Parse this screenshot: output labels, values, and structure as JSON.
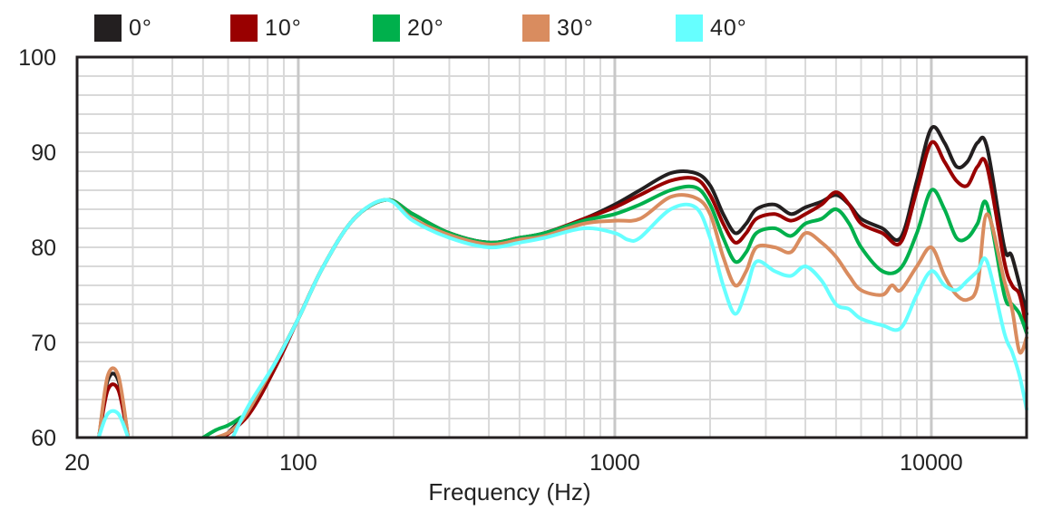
{
  "chart_data": {
    "type": "line",
    "xscale": "log",
    "xlabel": "Frequency (Hz)",
    "ylabel": "",
    "xlim": [
      20,
      20000
    ],
    "ylim": [
      60,
      100
    ],
    "x_ticks": [
      {
        "value": 20,
        "label": "20"
      },
      {
        "value": 100,
        "label": "100"
      },
      {
        "value": 1000,
        "label": "1000"
      },
      {
        "value": 10000,
        "label": "10000"
      }
    ],
    "y_ticks": [
      {
        "value": 60,
        "label": "60"
      },
      {
        "value": 70,
        "label": "70"
      },
      {
        "value": 80,
        "label": "80"
      },
      {
        "value": 90,
        "label": "90"
      },
      {
        "value": 100,
        "label": "100"
      }
    ],
    "legend_position": "top",
    "series": [
      {
        "name": "0°",
        "color": "#231f20",
        "segments": [
          [
            [
              23.5,
              60.2
            ],
            [
              25,
              66
            ],
            [
              27,
              66
            ],
            [
              29,
              60
            ]
          ],
          [
            [
              58,
              60
            ],
            [
              70,
              63
            ],
            [
              85,
              68
            ],
            [
              100,
              72.5
            ],
            [
              120,
              78
            ],
            [
              150,
              83
            ],
            [
              190,
              85
            ],
            [
              230,
              83.5
            ],
            [
              300,
              81.5
            ],
            [
              400,
              80.5
            ],
            [
              500,
              81
            ],
            [
              600,
              81.5
            ],
            [
              800,
              83
            ],
            [
              1000,
              84.5
            ],
            [
              1200,
              86
            ],
            [
              1500,
              87.8
            ],
            [
              1800,
              87.8
            ],
            [
              2000,
              86.5
            ],
            [
              2200,
              83.5
            ],
            [
              2400,
              81.5
            ],
            [
              2600,
              82.5
            ],
            [
              2800,
              84
            ],
            [
              3200,
              84.5
            ],
            [
              3600,
              83.5
            ],
            [
              4000,
              84.2
            ],
            [
              4500,
              84.8
            ],
            [
              5000,
              85.5
            ],
            [
              5500,
              84.5
            ],
            [
              6000,
              83
            ],
            [
              7000,
              82
            ],
            [
              8000,
              81
            ],
            [
              9000,
              87
            ],
            [
              10000,
              92.5
            ],
            [
              11000,
              91
            ],
            [
              12000,
              88.5
            ],
            [
              13000,
              89
            ],
            [
              14000,
              91
            ],
            [
              15000,
              90.5
            ],
            [
              17000,
              80
            ],
            [
              18000,
              79
            ],
            [
              20000,
              73
            ]
          ]
        ]
      },
      {
        "name": "10°",
        "color": "#990000",
        "segments": [
          [
            [
              23.5,
              60.2
            ],
            [
              25,
              65
            ],
            [
              27,
              65
            ],
            [
              29,
              60
            ]
          ],
          [
            [
              58,
              60
            ],
            [
              70,
              62.5
            ],
            [
              85,
              67.5
            ],
            [
              100,
              72.5
            ],
            [
              120,
              78
            ],
            [
              150,
              83
            ],
            [
              190,
              85
            ],
            [
              230,
              83.5
            ],
            [
              300,
              81.5
            ],
            [
              400,
              80.5
            ],
            [
              500,
              81
            ],
            [
              600,
              81.5
            ],
            [
              800,
              83
            ],
            [
              1000,
              84.2
            ],
            [
              1200,
              85.5
            ],
            [
              1500,
              87
            ],
            [
              1800,
              87.2
            ],
            [
              2000,
              85.5
            ],
            [
              2200,
              82.5
            ],
            [
              2400,
              80.5
            ],
            [
              2600,
              81.5
            ],
            [
              2800,
              83
            ],
            [
              3200,
              83.5
            ],
            [
              3600,
              82.8
            ],
            [
              4000,
              83.5
            ],
            [
              4500,
              84.5
            ],
            [
              5000,
              85.8
            ],
            [
              5500,
              84.5
            ],
            [
              6000,
              82.5
            ],
            [
              7000,
              81.5
            ],
            [
              8000,
              80.5
            ],
            [
              9000,
              86
            ],
            [
              10000,
              91
            ],
            [
              11000,
              89
            ],
            [
              12000,
              87
            ],
            [
              13000,
              86.5
            ],
            [
              14000,
              88.5
            ],
            [
              15000,
              88.5
            ],
            [
              17000,
              78.5
            ],
            [
              18000,
              76
            ],
            [
              19000,
              75
            ],
            [
              20000,
              71.5
            ]
          ]
        ]
      },
      {
        "name": "20°",
        "color": "#00b04c",
        "segments": [
          [
            [
              50,
              60
            ],
            [
              55,
              60.8
            ],
            [
              60,
              61.3
            ],
            [
              65,
              62
            ],
            [
              70,
              63
            ],
            [
              85,
              68
            ],
            [
              100,
              72.5
            ],
            [
              120,
              78
            ],
            [
              150,
              83
            ],
            [
              190,
              85
            ],
            [
              230,
              83.5
            ],
            [
              300,
              81.5
            ],
            [
              400,
              80.5
            ],
            [
              500,
              81
            ],
            [
              600,
              81.5
            ],
            [
              800,
              82.8
            ],
            [
              1000,
              83.5
            ],
            [
              1200,
              84.5
            ],
            [
              1500,
              86
            ],
            [
              1800,
              86.3
            ],
            [
              2000,
              84.5
            ],
            [
              2200,
              81
            ],
            [
              2400,
              78.5
            ],
            [
              2600,
              79.5
            ],
            [
              2800,
              81.5
            ],
            [
              3200,
              82
            ],
            [
              3600,
              81.2
            ],
            [
              4000,
              82.5
            ],
            [
              4500,
              83
            ],
            [
              5000,
              84
            ],
            [
              5500,
              82.5
            ],
            [
              6000,
              80
            ],
            [
              7000,
              77.5
            ],
            [
              8000,
              77.8
            ],
            [
              9000,
              81.5
            ],
            [
              10000,
              86
            ],
            [
              11000,
              84
            ],
            [
              12000,
              81
            ],
            [
              13000,
              81
            ],
            [
              14000,
              82.5
            ],
            [
              15000,
              84.5
            ],
            [
              17000,
              75
            ],
            [
              18000,
              74
            ],
            [
              19000,
              73
            ],
            [
              20000,
              71
            ]
          ]
        ]
      },
      {
        "name": "30°",
        "color": "#d98c5f",
        "segments": [
          [
            [
              23.5,
              60.2
            ],
            [
              25,
              66.5
            ],
            [
              27,
              66.5
            ],
            [
              29,
              60
            ]
          ],
          [
            [
              55,
              60
            ],
            [
              60,
              60.5
            ],
            [
              65,
              61.5
            ],
            [
              70,
              63
            ],
            [
              85,
              68
            ],
            [
              100,
              72.5
            ],
            [
              120,
              78
            ],
            [
              150,
              83
            ],
            [
              190,
              85
            ],
            [
              230,
              83
            ],
            [
              300,
              81.3
            ],
            [
              400,
              80.3
            ],
            [
              500,
              80.8
            ],
            [
              600,
              81.2
            ],
            [
              800,
              82.5
            ],
            [
              1000,
              82.8
            ],
            [
              1200,
              83
            ],
            [
              1500,
              85.3
            ],
            [
              1800,
              85.2
            ],
            [
              2000,
              83.5
            ],
            [
              2200,
              79
            ],
            [
              2400,
              76
            ],
            [
              2600,
              77.5
            ],
            [
              2800,
              80
            ],
            [
              3200,
              80
            ],
            [
              3600,
              79.5
            ],
            [
              4000,
              81.5
            ],
            [
              4500,
              80.5
            ],
            [
              5000,
              79
            ],
            [
              5500,
              77
            ],
            [
              6000,
              75.5
            ],
            [
              7000,
              75
            ],
            [
              7500,
              76
            ],
            [
              8000,
              75.5
            ],
            [
              9000,
              78
            ],
            [
              10000,
              80
            ],
            [
              11000,
              77
            ],
            [
              12000,
              75
            ],
            [
              13000,
              74.5
            ],
            [
              14000,
              76
            ],
            [
              15000,
              83.5
            ],
            [
              17000,
              76.5
            ],
            [
              18000,
              73.5
            ],
            [
              19000,
              69
            ],
            [
              20000,
              70.5
            ]
          ]
        ]
      },
      {
        "name": "40°",
        "color": "#66ffff",
        "segments": [
          [
            [
              23.5,
              60.2
            ],
            [
              25,
              62.5
            ],
            [
              27,
              62.5
            ],
            [
              29,
              60
            ]
          ],
          [
            [
              62,
              60
            ],
            [
              70,
              63.5
            ],
            [
              85,
              68
            ],
            [
              100,
              72.5
            ],
            [
              120,
              78
            ],
            [
              150,
              83
            ],
            [
              190,
              85
            ],
            [
              230,
              82.8
            ],
            [
              300,
              81
            ],
            [
              400,
              80
            ],
            [
              500,
              80.5
            ],
            [
              600,
              81
            ],
            [
              800,
              82
            ],
            [
              1000,
              81.5
            ],
            [
              1100,
              80.8
            ],
            [
              1200,
              81
            ],
            [
              1500,
              84
            ],
            [
              1800,
              84.2
            ],
            [
              2000,
              81
            ],
            [
              2200,
              76
            ],
            [
              2400,
              73
            ],
            [
              2600,
              75.5
            ],
            [
              2800,
              78.5
            ],
            [
              3200,
              77.5
            ],
            [
              3600,
              77
            ],
            [
              4000,
              78
            ],
            [
              4500,
              76.5
            ],
            [
              5000,
              74
            ],
            [
              5500,
              73.5
            ],
            [
              6000,
              72.5
            ],
            [
              7000,
              71.8
            ],
            [
              8000,
              71.5
            ],
            [
              9000,
              75
            ],
            [
              10000,
              77.5
            ],
            [
              11000,
              76
            ],
            [
              12000,
              75.5
            ],
            [
              13000,
              76.5
            ],
            [
              14000,
              77.5
            ],
            [
              15000,
              78.5
            ],
            [
              17000,
              71
            ],
            [
              18000,
              69
            ],
            [
              19000,
              66.5
            ],
            [
              20000,
              63
            ]
          ]
        ]
      }
    ]
  }
}
